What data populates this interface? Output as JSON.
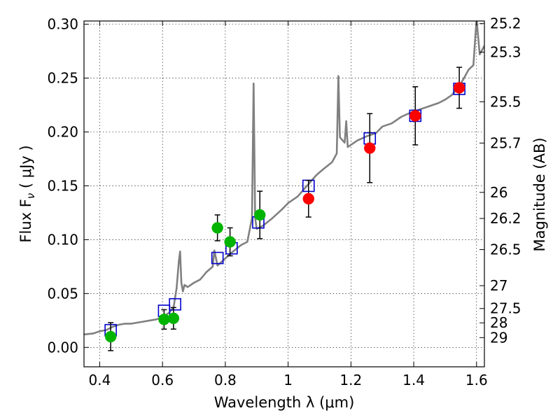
{
  "chart_data": {
    "type": "scatter",
    "title": "",
    "xlabel": "Wavelength  λ (μm)",
    "ylabel": "Flux  F",
    "ylabel_sub": "ν",
    "ylabel_unit": " ( μJy )",
    "ylabel_right": "Magnitude (AB)",
    "xlim": [
      0.35,
      1.625
    ],
    "ylim": [
      -0.018,
      0.303
    ],
    "grid": true,
    "x_ticks": [
      {
        "value": 0.4,
        "label": "0.4"
      },
      {
        "value": 0.6,
        "label": "0.6"
      },
      {
        "value": 0.8,
        "label": "0.8"
      },
      {
        "value": 1.0,
        "label": "1"
      },
      {
        "value": 1.2,
        "label": "1.2"
      },
      {
        "value": 1.4,
        "label": "1.4"
      },
      {
        "value": 1.6,
        "label": "1.6"
      }
    ],
    "y_ticks": [
      {
        "value": 0.0,
        "label": "0.00"
      },
      {
        "value": 0.05,
        "label": "0.05"
      },
      {
        "value": 0.1,
        "label": "0.10"
      },
      {
        "value": 0.15,
        "label": "0.15"
      },
      {
        "value": 0.2,
        "label": "0.20"
      },
      {
        "value": 0.25,
        "label": "0.25"
      },
      {
        "value": 0.3,
        "label": "0.30"
      }
    ],
    "right_ticks": [
      {
        "label": "25.2",
        "flux": 0.3006
      },
      {
        "label": "25.3",
        "flux": 0.2741
      },
      {
        "label": "25.5",
        "flux": 0.228
      },
      {
        "label": "25.7",
        "flux": 0.1897
      },
      {
        "label": "26",
        "flux": 0.1439
      },
      {
        "label": "26.2",
        "flux": 0.1197
      },
      {
        "label": "26.5",
        "flux": 0.0908
      },
      {
        "label": "27",
        "flux": 0.0573
      },
      {
        "label": "27.5",
        "flux": 0.0361
      },
      {
        "label": "28",
        "flux": 0.0228
      },
      {
        "label": "29",
        "flux": 0.0091
      }
    ],
    "colors": {
      "model": "#808080",
      "optical": "#00b400",
      "nir": "#ff0000",
      "model_boxes": "#0000cc",
      "errorbar": "#000000"
    },
    "model_spectrum": [
      [
        0.35,
        0.012
      ],
      [
        0.38,
        0.013
      ],
      [
        0.4,
        0.015
      ],
      [
        0.42,
        0.016
      ],
      [
        0.44,
        0.019
      ],
      [
        0.46,
        0.021
      ],
      [
        0.48,
        0.022
      ],
      [
        0.5,
        0.022
      ],
      [
        0.52,
        0.023
      ],
      [
        0.54,
        0.024
      ],
      [
        0.56,
        0.025
      ],
      [
        0.58,
        0.026
      ],
      [
        0.6,
        0.028
      ],
      [
        0.62,
        0.032
      ],
      [
        0.635,
        0.037
      ],
      [
        0.645,
        0.055
      ],
      [
        0.652,
        0.08
      ],
      [
        0.656,
        0.089
      ],
      [
        0.66,
        0.06
      ],
      [
        0.665,
        0.052
      ],
      [
        0.67,
        0.058
      ],
      [
        0.68,
        0.056
      ],
      [
        0.7,
        0.06
      ],
      [
        0.72,
        0.063
      ],
      [
        0.74,
        0.07
      ],
      [
        0.76,
        0.075
      ],
      [
        0.765,
        0.09
      ],
      [
        0.775,
        0.076
      ],
      [
        0.79,
        0.08
      ],
      [
        0.82,
        0.088
      ],
      [
        0.85,
        0.095
      ],
      [
        0.87,
        0.098
      ],
      [
        0.885,
        0.12
      ],
      [
        0.89,
        0.245
      ],
      [
        0.895,
        0.12
      ],
      [
        0.9,
        0.11
      ],
      [
        0.92,
        0.113
      ],
      [
        0.95,
        0.12
      ],
      [
        0.98,
        0.128
      ],
      [
        1.0,
        0.134
      ],
      [
        1.03,
        0.14
      ],
      [
        1.06,
        0.15
      ],
      [
        1.09,
        0.16
      ],
      [
        1.11,
        0.165
      ],
      [
        1.14,
        0.172
      ],
      [
        1.155,
        0.18
      ],
      [
        1.16,
        0.252
      ],
      [
        1.165,
        0.195
      ],
      [
        1.18,
        0.19
      ],
      [
        1.185,
        0.21
      ],
      [
        1.19,
        0.186
      ],
      [
        1.22,
        0.192
      ],
      [
        1.25,
        0.196
      ],
      [
        1.28,
        0.199
      ],
      [
        1.3,
        0.205
      ],
      [
        1.33,
        0.208
      ],
      [
        1.36,
        0.214
      ],
      [
        1.39,
        0.218
      ],
      [
        1.42,
        0.221
      ],
      [
        1.45,
        0.224
      ],
      [
        1.48,
        0.227
      ],
      [
        1.5,
        0.23
      ],
      [
        1.52,
        0.234
      ],
      [
        1.54,
        0.24
      ],
      [
        1.56,
        0.25
      ],
      [
        1.575,
        0.258
      ],
      [
        1.59,
        0.262
      ],
      [
        1.6,
        0.305
      ],
      [
        1.61,
        0.272
      ],
      [
        1.625,
        0.28
      ]
    ],
    "model_photometry": [
      {
        "x": 0.435,
        "y": 0.016
      },
      {
        "x": 0.605,
        "y": 0.034
      },
      {
        "x": 0.64,
        "y": 0.04
      },
      {
        "x": 0.775,
        "y": 0.083
      },
      {
        "x": 0.82,
        "y": 0.092
      },
      {
        "x": 0.905,
        "y": 0.116
      },
      {
        "x": 1.065,
        "y": 0.15
      },
      {
        "x": 1.26,
        "y": 0.194
      },
      {
        "x": 1.405,
        "y": 0.215
      },
      {
        "x": 1.545,
        "y": 0.24
      }
    ],
    "series": [
      {
        "group": "optical",
        "points": [
          {
            "x": 0.435,
            "y": 0.01,
            "err": 0.013
          },
          {
            "x": 0.605,
            "y": 0.026,
            "err": 0.009
          },
          {
            "x": 0.635,
            "y": 0.027,
            "err": 0.01
          },
          {
            "x": 0.775,
            "y": 0.111,
            "err": 0.012
          },
          {
            "x": 0.815,
            "y": 0.098,
            "err": 0.013
          },
          {
            "x": 0.91,
            "y": 0.123,
            "err": 0.022
          }
        ]
      },
      {
        "group": "nir",
        "points": [
          {
            "x": 1.065,
            "y": 0.138,
            "err": 0.017
          },
          {
            "x": 1.26,
            "y": 0.185,
            "err": 0.032
          },
          {
            "x": 1.405,
            "y": 0.215,
            "err": 0.027
          },
          {
            "x": 1.545,
            "y": 0.241,
            "err": 0.019
          }
        ]
      }
    ]
  }
}
